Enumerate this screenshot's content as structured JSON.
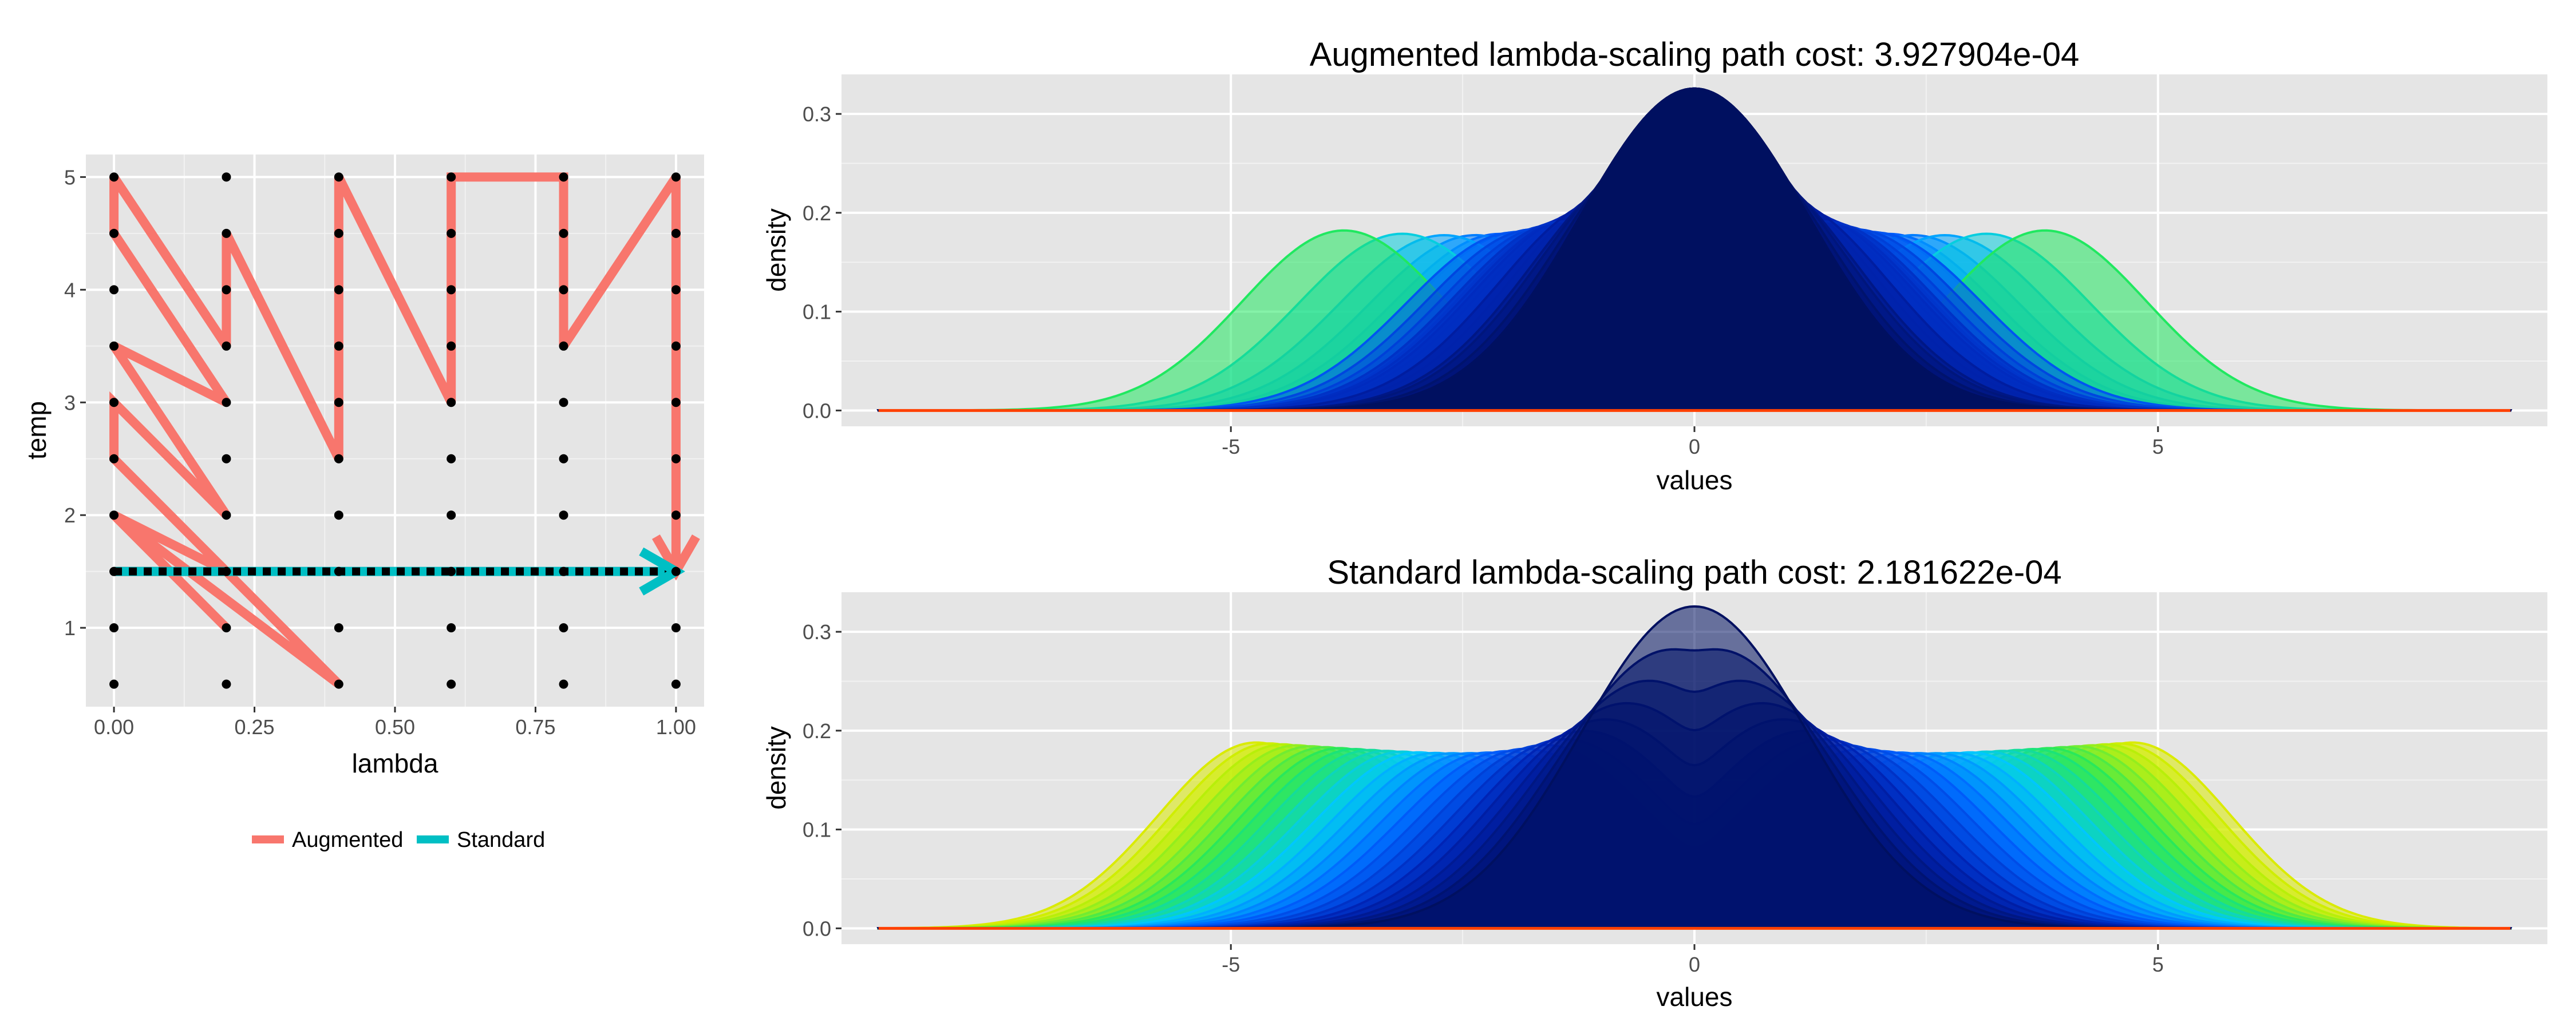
{
  "chart_data": [
    {
      "type": "line",
      "id": "path-plot",
      "xlabel": "lambda",
      "ylabel": "temp",
      "xlim": [
        -0.05,
        1.05
      ],
      "ylim": [
        0.3,
        5.2
      ],
      "xticks": [
        0.0,
        0.25,
        0.5,
        0.75,
        1.0
      ],
      "xtick_labels": [
        "0.00",
        "0.25",
        "0.50",
        "0.75",
        "1.00"
      ],
      "yticks": [
        1,
        2,
        3,
        4,
        5
      ],
      "ytick_labels": [
        "1",
        "2",
        "3",
        "4",
        "5"
      ],
      "grid": true,
      "legend_position": "bottom",
      "grid_points": {
        "lambda": [
          0.0,
          0.2,
          0.4,
          0.6,
          0.8,
          1.0
        ],
        "temp": [
          0.5,
          1.0,
          1.5,
          2.0,
          2.5,
          3.0,
          3.5,
          4.0,
          4.5,
          5.0
        ]
      },
      "series": [
        {
          "name": "Augmented",
          "color": "#F8766D",
          "points": [
            [
              0.0,
              1.5
            ],
            [
              0.2,
              1.5
            ],
            [
              0.0,
              2.0
            ],
            [
              0.2,
              1.0
            ],
            [
              0.0,
              2.0
            ],
            [
              0.4,
              0.5
            ],
            [
              0.0,
              2.5
            ],
            [
              0.0,
              3.0
            ],
            [
              0.2,
              2.0
            ],
            [
              0.0,
              3.5
            ],
            [
              0.2,
              3.0
            ],
            [
              0.0,
              4.5
            ],
            [
              0.0,
              5.0
            ],
            [
              0.2,
              3.5
            ],
            [
              0.2,
              4.5
            ],
            [
              0.4,
              2.5
            ],
            [
              0.4,
              5.0
            ],
            [
              0.6,
              3.0
            ],
            [
              0.6,
              5.0
            ],
            [
              0.8,
              5.0
            ],
            [
              0.8,
              3.5
            ],
            [
              1.0,
              5.0
            ],
            [
              1.0,
              1.5
            ]
          ]
        },
        {
          "name": "Standard",
          "color": "#00BFC4",
          "points": [
            [
              0.0,
              1.5
            ],
            [
              1.0,
              1.5
            ]
          ]
        }
      ]
    },
    {
      "type": "area",
      "id": "augmented-density",
      "title": "Augmented lambda-scaling path cost:  3.927904e-04",
      "xlabel": "values",
      "ylabel": "density",
      "xlim": [
        -9.2,
        9.2
      ],
      "ylim": [
        -0.016,
        0.34
      ],
      "xticks": [
        -5,
        0,
        5
      ],
      "xtick_labels": [
        "-5",
        "0",
        "5"
      ],
      "yticks": [
        0.0,
        0.1,
        0.2,
        0.3
      ],
      "ytick_labels": [
        "0.0",
        "0.1",
        "0.2",
        "0.3"
      ],
      "grid": true,
      "mixture": {
        "outer_mean": 6.3,
        "outer_sd": 1.0,
        "center_sd": 1.225,
        "x_range": [
          -8.8,
          8.8
        ]
      },
      "color_scale": [
        "#001060",
        "#0020B0",
        "#0060FF",
        "#00C8FF",
        "#20E860",
        "#C8F000",
        "#FFE000",
        "#FF9000",
        "#FF6000"
      ],
      "curves": [
        {
          "lambda": 1.0,
          "temp": 5.0
        },
        {
          "lambda": 1.0,
          "temp": 4.5
        },
        {
          "lambda": 1.0,
          "temp": 4.0
        },
        {
          "lambda": 1.0,
          "temp": 3.5
        },
        {
          "lambda": 1.0,
          "temp": 3.0
        },
        {
          "lambda": 1.0,
          "temp": 2.5
        },
        {
          "lambda": 1.0,
          "temp": 2.0
        },
        {
          "lambda": 0.8,
          "temp": 3.5
        },
        {
          "lambda": 0.8,
          "temp": 4.5
        },
        {
          "lambda": 0.8,
          "temp": 5.0
        },
        {
          "lambda": 0.6,
          "temp": 5.0
        },
        {
          "lambda": 0.6,
          "temp": 4.0
        },
        {
          "lambda": 0.6,
          "temp": 3.0
        },
        {
          "lambda": 0.5,
          "temp": 3.5
        },
        {
          "lambda": 0.4,
          "temp": 5.0
        },
        {
          "lambda": 0.4,
          "temp": 4.0
        },
        {
          "lambda": 0.4,
          "temp": 3.0
        },
        {
          "lambda": 0.4,
          "temp": 2.5
        },
        {
          "lambda": 0.3,
          "temp": 3.0
        },
        {
          "lambda": 0.2,
          "temp": 3.5
        },
        {
          "lambda": 0.2,
          "temp": 4.5
        },
        {
          "lambda": 0.1,
          "temp": 4.8
        },
        {
          "lambda": 0.0,
          "temp": 5.0
        },
        {
          "lambda": 0.0,
          "temp": 4.5
        },
        {
          "lambda": 0.0,
          "temp": 4.0
        },
        {
          "lambda": 0.0,
          "temp": 3.5
        },
        {
          "lambda": 0.0,
          "temp": 3.0
        },
        {
          "lambda": 0.0,
          "temp": 2.5
        },
        {
          "lambda": 0.0,
          "temp": 2.0
        },
        {
          "lambda": 0.0,
          "temp": 1.75
        },
        {
          "lambda": 0.0,
          "temp": 1.5
        }
      ]
    },
    {
      "type": "area",
      "id": "standard-density",
      "title": "Standard lambda-scaling path cost:  2.181622e-04",
      "xlabel": "values",
      "ylabel": "density",
      "xlim": [
        -9.2,
        9.2
      ],
      "ylim": [
        -0.016,
        0.34
      ],
      "xticks": [
        -5,
        0,
        5
      ],
      "xtick_labels": [
        "-5",
        "0",
        "5"
      ],
      "yticks": [
        0.0,
        0.1,
        0.2,
        0.3
      ],
      "ytick_labels": [
        "0.0",
        "0.1",
        "0.2",
        "0.3"
      ],
      "grid": true,
      "mixture": {
        "outer_mean": 6.3,
        "outer_sd": 1.0,
        "center_sd": 1.225,
        "x_range": [
          -8.8,
          8.8
        ]
      },
      "color_scale": [
        "#001060",
        "#0020B0",
        "#0060FF",
        "#00C8FF",
        "#20E860",
        "#C8F000",
        "#FFE000",
        "#FF9000",
        "#FF6000"
      ],
      "curves": [
        {
          "lambda": 1.0,
          "temp": 1.5
        },
        {
          "lambda": 0.96,
          "temp": 1.5
        },
        {
          "lambda": 0.92,
          "temp": 1.5
        },
        {
          "lambda": 0.88,
          "temp": 1.5
        },
        {
          "lambda": 0.84,
          "temp": 1.5
        },
        {
          "lambda": 0.8,
          "temp": 1.5
        },
        {
          "lambda": 0.76,
          "temp": 1.5
        },
        {
          "lambda": 0.72,
          "temp": 1.5
        },
        {
          "lambda": 0.68,
          "temp": 1.5
        },
        {
          "lambda": 0.64,
          "temp": 1.5
        },
        {
          "lambda": 0.6,
          "temp": 1.5
        },
        {
          "lambda": 0.56,
          "temp": 1.5
        },
        {
          "lambda": 0.52,
          "temp": 1.5
        },
        {
          "lambda": 0.48,
          "temp": 1.5
        },
        {
          "lambda": 0.44,
          "temp": 1.5
        },
        {
          "lambda": 0.4,
          "temp": 1.5
        },
        {
          "lambda": 0.36,
          "temp": 1.5
        },
        {
          "lambda": 0.32,
          "temp": 1.5
        },
        {
          "lambda": 0.28,
          "temp": 1.5
        },
        {
          "lambda": 0.24,
          "temp": 1.5
        },
        {
          "lambda": 0.2,
          "temp": 1.5
        },
        {
          "lambda": 0.16,
          "temp": 1.5
        },
        {
          "lambda": 0.12,
          "temp": 1.5
        },
        {
          "lambda": 0.08,
          "temp": 1.5
        },
        {
          "lambda": 0.04,
          "temp": 1.5
        },
        {
          "lambda": 0.0,
          "temp": 1.5
        }
      ]
    }
  ],
  "legend": {
    "items": [
      {
        "label": "Augmented",
        "color": "#F8766D"
      },
      {
        "label": "Standard",
        "color": "#00BFC4"
      }
    ]
  },
  "theme": {
    "panel_background": "#E5E5E5",
    "grid_major": "#FFFFFF",
    "grid_minor": "#F2F2F2",
    "point_color": "#000000",
    "curve_edge": "#FF4000"
  }
}
